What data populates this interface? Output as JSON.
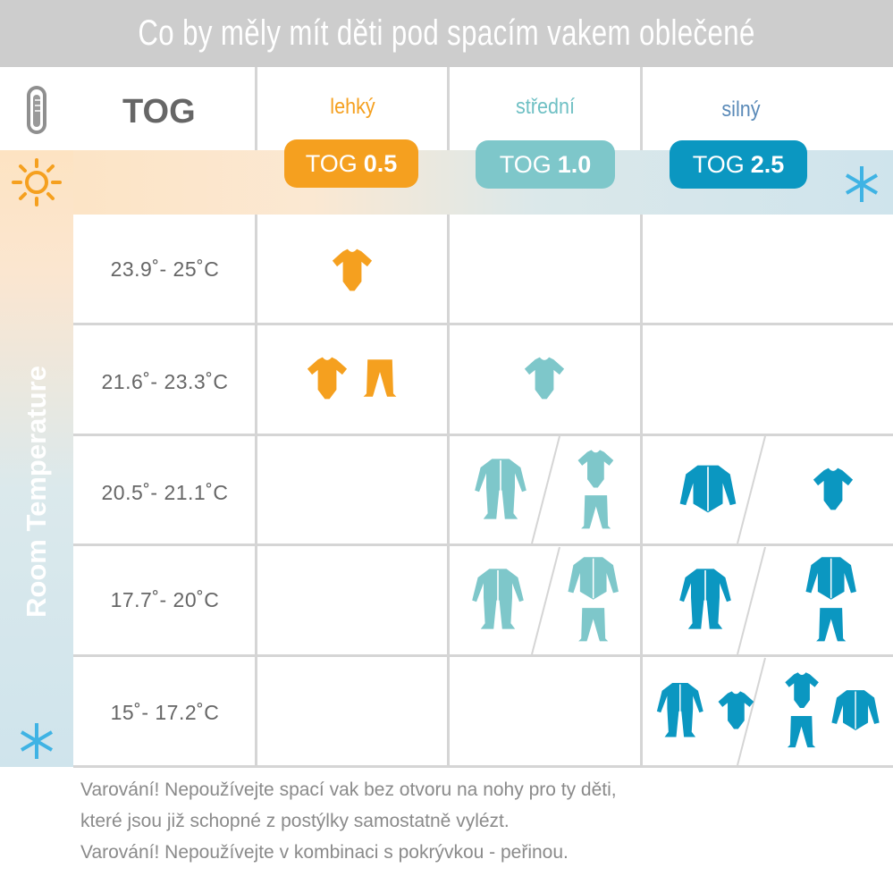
{
  "title": "Co by měly mít děti pod spacím vakem oblečené",
  "header": {
    "tog_label": "TOG",
    "columns": [
      {
        "label": "lehký",
        "pill_prefix": "TOG",
        "pill_value": "0.5",
        "color": "#f5a01f"
      },
      {
        "label": "střední",
        "pill_prefix": "TOG",
        "pill_value": "1.0",
        "color": "#7ec7ca"
      },
      {
        "label": "silný",
        "pill_prefix": "TOG",
        "pill_value": "2.5",
        "color": "#0b97c1"
      }
    ]
  },
  "side_label": "Room Temperature",
  "icons": [
    "thermometer-icon",
    "sun-icon",
    "snowflake-icon",
    "bodysuit-icon",
    "pants-icon",
    "sleepsuit-icon",
    "cardigan-icon"
  ],
  "rows": [
    {
      "temp": "23.9˚- 25˚C",
      "cells": [
        [
          [
            "bodysuit"
          ]
        ],
        [],
        []
      ]
    },
    {
      "temp": "21.6˚- 23.3˚C",
      "cells": [
        [
          [
            "bodysuit",
            "pants"
          ]
        ],
        [
          [
            "bodysuit"
          ]
        ],
        []
      ]
    },
    {
      "temp": "20.5˚- 21.1˚C",
      "cells": [
        [],
        [
          [
            "sleepsuit"
          ],
          [
            "bodysuit",
            "pants"
          ]
        ],
        [
          [
            "cardigan"
          ],
          [
            "bodysuit"
          ]
        ]
      ]
    },
    {
      "temp": "17.7˚- 20˚C",
      "cells": [
        [],
        [
          [
            "sleepsuit"
          ],
          [
            "cardigan",
            "pants"
          ]
        ],
        [
          [
            "sleepsuit"
          ],
          [
            "cardigan",
            "pants"
          ]
        ]
      ]
    },
    {
      "temp": "15˚- 17.2˚C",
      "cells": [
        [],
        [],
        [
          [
            "sleepsuit",
            "bodysuit"
          ],
          [
            "bodysuit",
            "pants",
            "cardigan"
          ]
        ]
      ]
    }
  ],
  "footer": {
    "warning1": "Varování! Nepoužívejte spací vak bez otvoru na nohy pro ty děti,",
    "warning1b": "které jsou již schopné z postýlky samostatně vylézt.",
    "warning2": "Varování! Nepoužívejte v kombinaci s pokrývkou - peřinou."
  }
}
